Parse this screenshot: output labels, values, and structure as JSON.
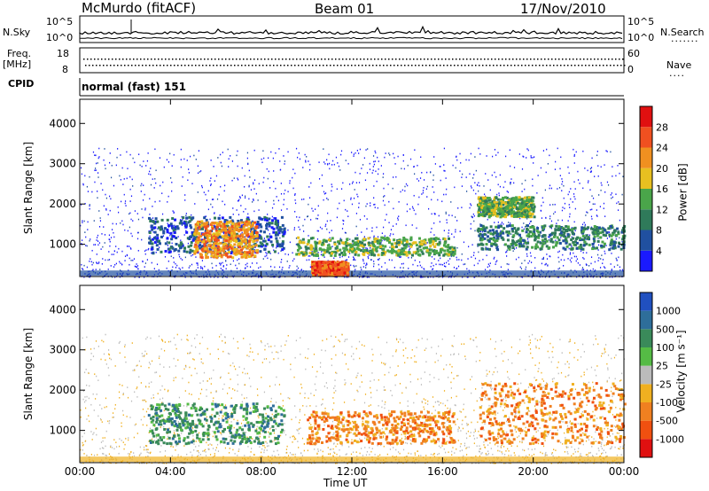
{
  "header": {
    "station": "McMurdo (fitACF)",
    "beam": "Beam 01",
    "date": "17/Nov/2010"
  },
  "top_panels": {
    "nsky_label": "N.Sky",
    "nsky_ticks": [
      "10^5",
      "10^0"
    ],
    "nsearch_label": "N.Search",
    "nsearch_ticks": [
      "10^5",
      "10^0"
    ],
    "freq_label": "Freq.",
    "freq_unit": "[MHz]",
    "freq_ticks": [
      "18",
      "8"
    ],
    "nave_label": "Nave",
    "nave_ticks": [
      "60",
      "0"
    ],
    "cpid_label": "CPID",
    "cpid_value": "normal (fast) 151"
  },
  "chart_data": [
    {
      "type": "heatmap",
      "name": "power",
      "ylabel": "Slant Range [km]",
      "yticks": [
        "1000",
        "2000",
        "3000",
        "4000"
      ],
      "ylim": [
        200,
        4600
      ],
      "xlim": [
        0,
        24
      ],
      "colorbar": {
        "label": "Power [dB]",
        "ticks": [
          "4",
          "8",
          "12",
          "16",
          "20",
          "24",
          "28"
        ],
        "colors": [
          "#1a1aff",
          "#2050a0",
          "#2f7a5a",
          "#4aa54a",
          "#e8c020",
          "#f09020",
          "#f05020",
          "#e01010"
        ]
      },
      "regions": [
        {
          "x": [
            3.0,
            9.0
          ],
          "y": [
            800,
            1700
          ],
          "level": 1
        },
        {
          "x": [
            5.0,
            7.8
          ],
          "y": [
            700,
            1600
          ],
          "level": 5
        },
        {
          "x": [
            10.2,
            11.8
          ],
          "y": [
            250,
            600
          ],
          "level": 6
        },
        {
          "x": [
            9.5,
            16.5
          ],
          "y": [
            750,
            1200
          ],
          "level": 3
        },
        {
          "x": [
            17.5,
            24.0
          ],
          "y": [
            900,
            1500
          ],
          "level": 2
        },
        {
          "x": [
            17.5,
            20.0
          ],
          "y": [
            1700,
            2200
          ],
          "level": 3
        }
      ]
    },
    {
      "type": "heatmap",
      "name": "velocity",
      "ylabel": "Slant Range [km]",
      "xlabel": "Time UT",
      "xticks": [
        "00:00",
        "04:00",
        "08:00",
        "12:00",
        "16:00",
        "20:00",
        "00:00"
      ],
      "yticks": [
        "1000",
        "2000",
        "3000",
        "4000"
      ],
      "ylim": [
        200,
        4600
      ],
      "xlim": [
        0,
        24
      ],
      "colorbar": {
        "label": "Velocity [m s⁻¹]",
        "ticks": [
          "1000",
          "500",
          "100",
          "25",
          "-25",
          "-100",
          "-500",
          "-1000"
        ],
        "colors": [
          "#2050c0",
          "#2e6e9a",
          "#3a8a5a",
          "#55bb45",
          "#bbbbbb",
          "#f0b020",
          "#f08020",
          "#f05010",
          "#e01010"
        ]
      },
      "regions": [
        {
          "x": [
            3.0,
            9.0
          ],
          "y": [
            700,
            1700
          ],
          "level": 2
        },
        {
          "x": [
            10.0,
            16.5
          ],
          "y": [
            700,
            1500
          ],
          "level": 6
        },
        {
          "x": [
            17.5,
            24.0
          ],
          "y": [
            700,
            2200
          ],
          "level": 6
        }
      ]
    }
  ]
}
